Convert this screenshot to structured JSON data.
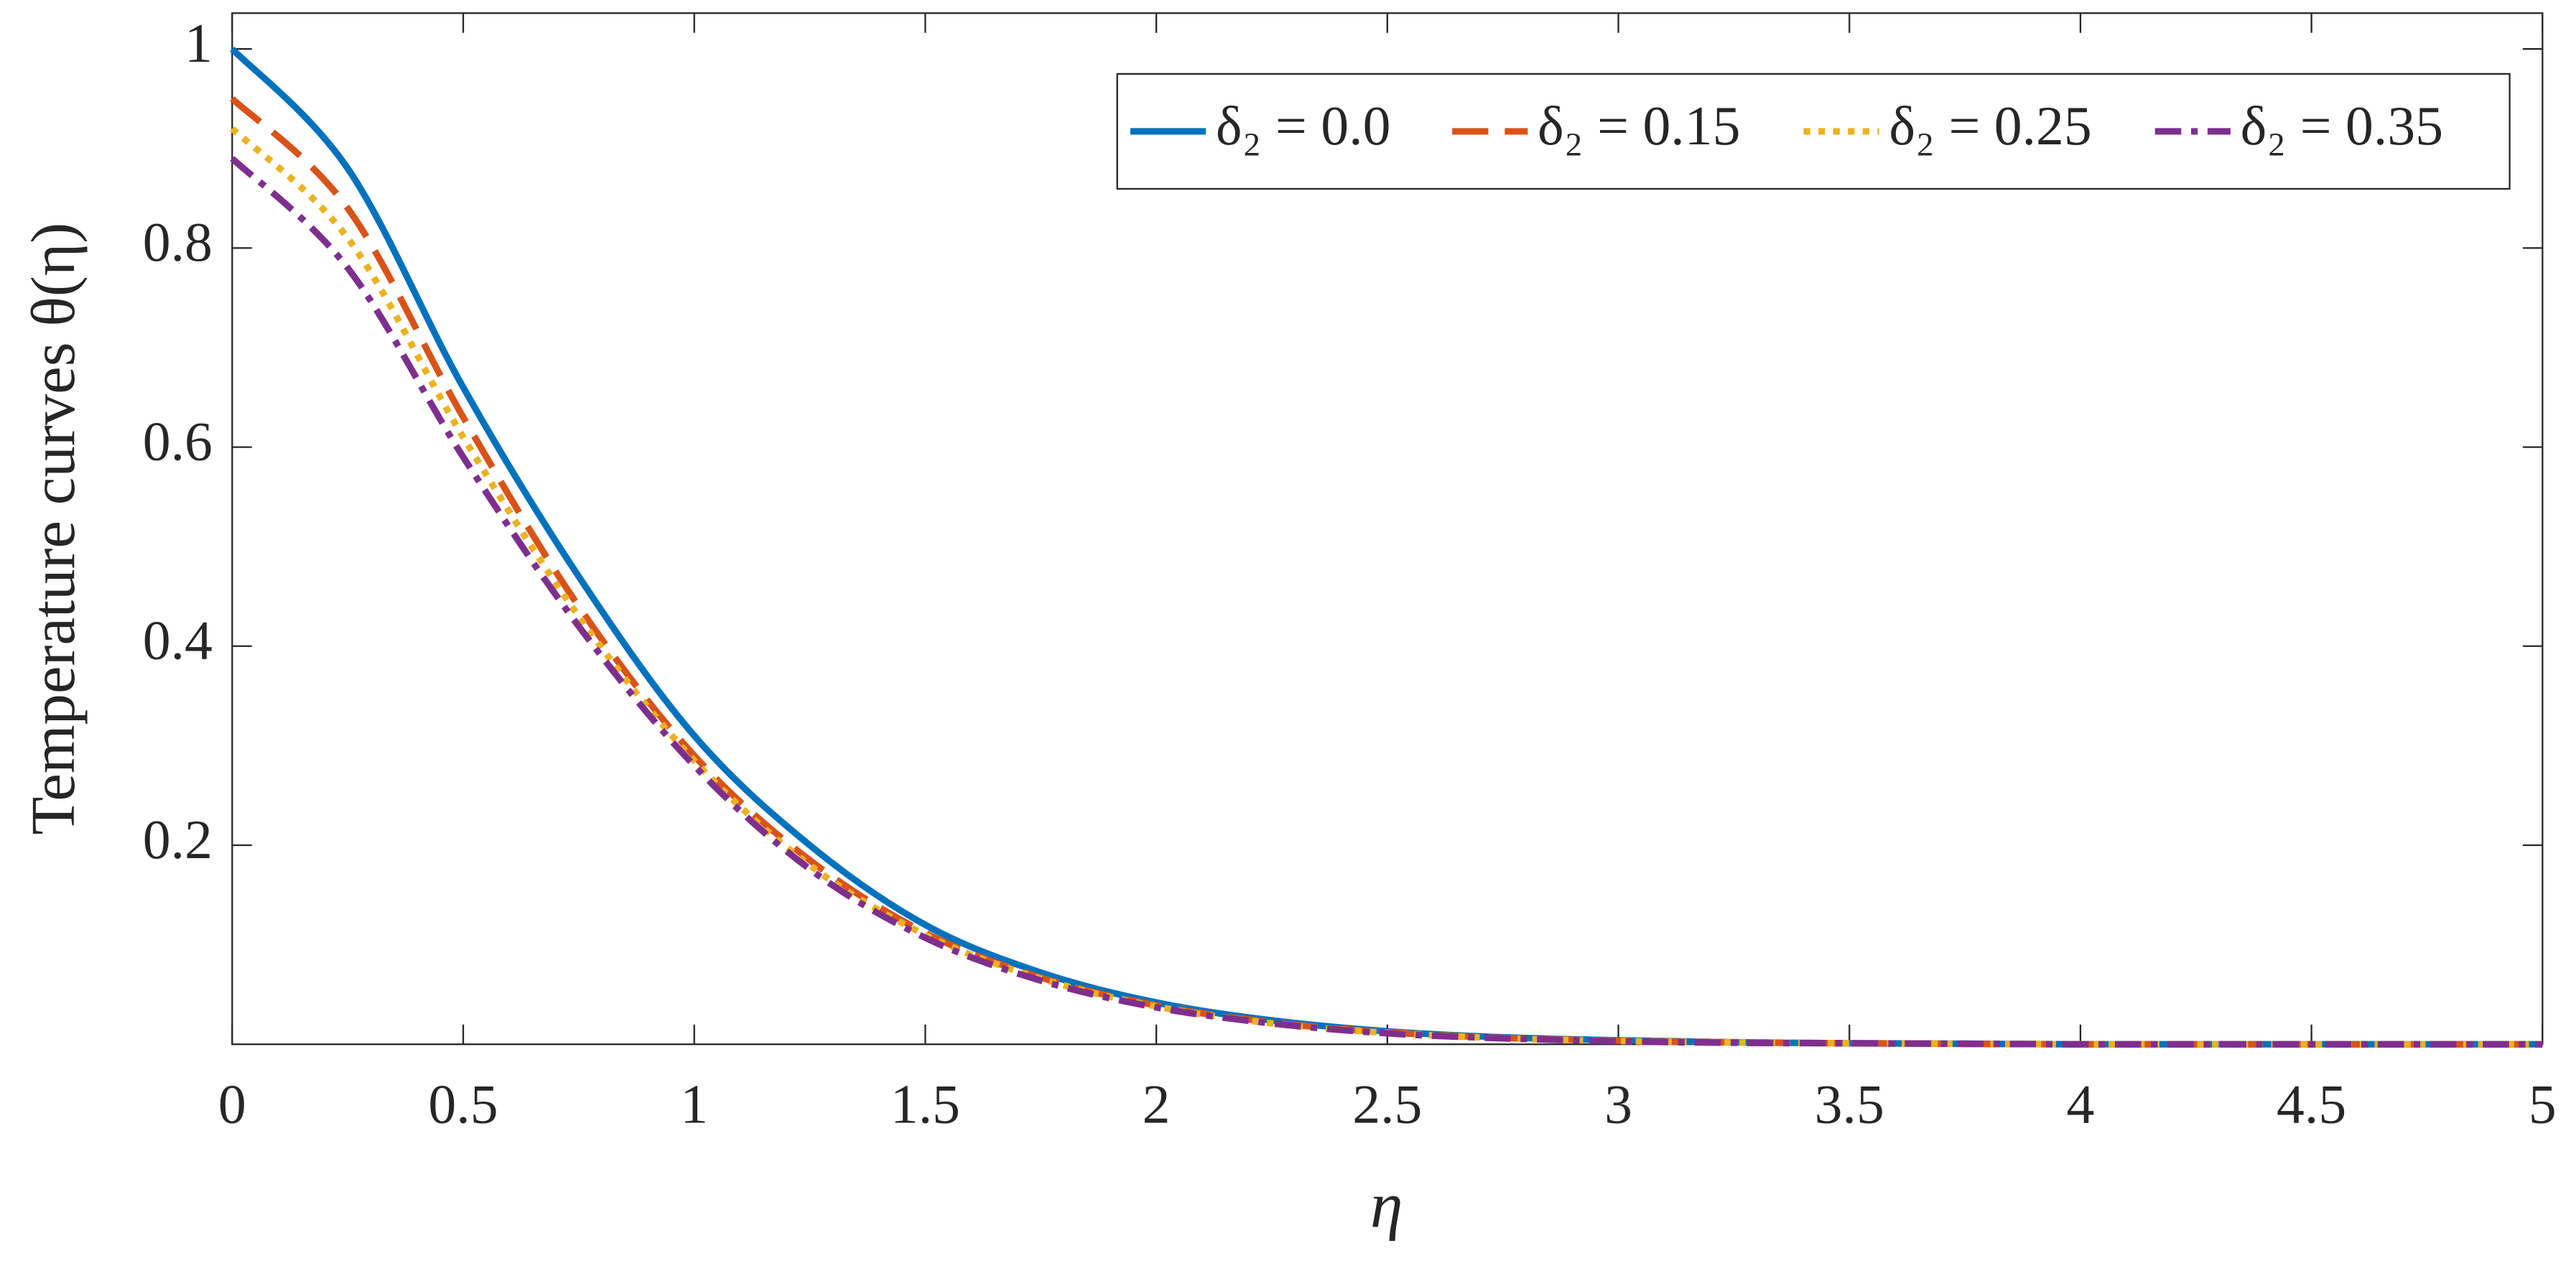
{
  "chart_data": {
    "type": "line",
    "xlabel": "η",
    "ylabel": "Temperature curves θ(η)",
    "x": [
      0,
      0.25,
      0.5,
      0.75,
      1,
      1.25,
      1.5,
      1.75,
      2,
      2.25,
      2.5,
      2.75,
      3,
      3.25,
      3.5,
      3.75,
      4,
      4.25,
      4.5,
      4.75,
      5
    ],
    "series": [
      {
        "name": "δ₂ = 0.0",
        "color": "#0072bd",
        "dash": "none",
        "values": [
          1,
          0.88,
          0.66,
          0.47,
          0.31,
          0.2,
          0.12,
          0.072,
          0.042,
          0.024,
          0.013,
          0.007,
          0.004,
          0.002,
          0.001,
          0.0005,
          0,
          0,
          0,
          0,
          0
        ]
      },
      {
        "name": "δ₂ = 0.15",
        "color": "#d95319",
        "dash": "22 10",
        "values": [
          0.95,
          0.84,
          0.63,
          0.44,
          0.29,
          0.185,
          0.112,
          0.067,
          0.039,
          0.022,
          0.012,
          0.0065,
          0.0035,
          0.002,
          0.001,
          0.0005,
          0,
          0,
          0,
          0,
          0
        ]
      },
      {
        "name": "δ₂ = 0.25",
        "color": "#edb120",
        "dash": "4 5",
        "values": [
          0.92,
          0.81,
          0.61,
          0.43,
          0.285,
          0.18,
          0.11,
          0.066,
          0.038,
          0.021,
          0.0115,
          0.006,
          0.0033,
          0.0018,
          0.001,
          0.0005,
          0,
          0,
          0,
          0,
          0
        ]
      },
      {
        "name": "δ₂ = 0.35",
        "color": "#7e2f8e",
        "dash": "16 6 4 6",
        "values": [
          0.89,
          0.78,
          0.59,
          0.42,
          0.28,
          0.176,
          0.107,
          0.064,
          0.037,
          0.021,
          0.011,
          0.006,
          0.003,
          0.0015,
          0.001,
          0.0005,
          0,
          0,
          0,
          0,
          0
        ]
      }
    ],
    "xlim": [
      0,
      5
    ],
    "ylim": [
      0,
      1.036
    ],
    "xticks": [
      0,
      0.5,
      1,
      1.5,
      2,
      2.5,
      3,
      3.5,
      4,
      4.5,
      5
    ],
    "yticks": [
      0.2,
      0.4,
      0.6,
      0.8,
      1
    ],
    "legend": "upper right"
  }
}
